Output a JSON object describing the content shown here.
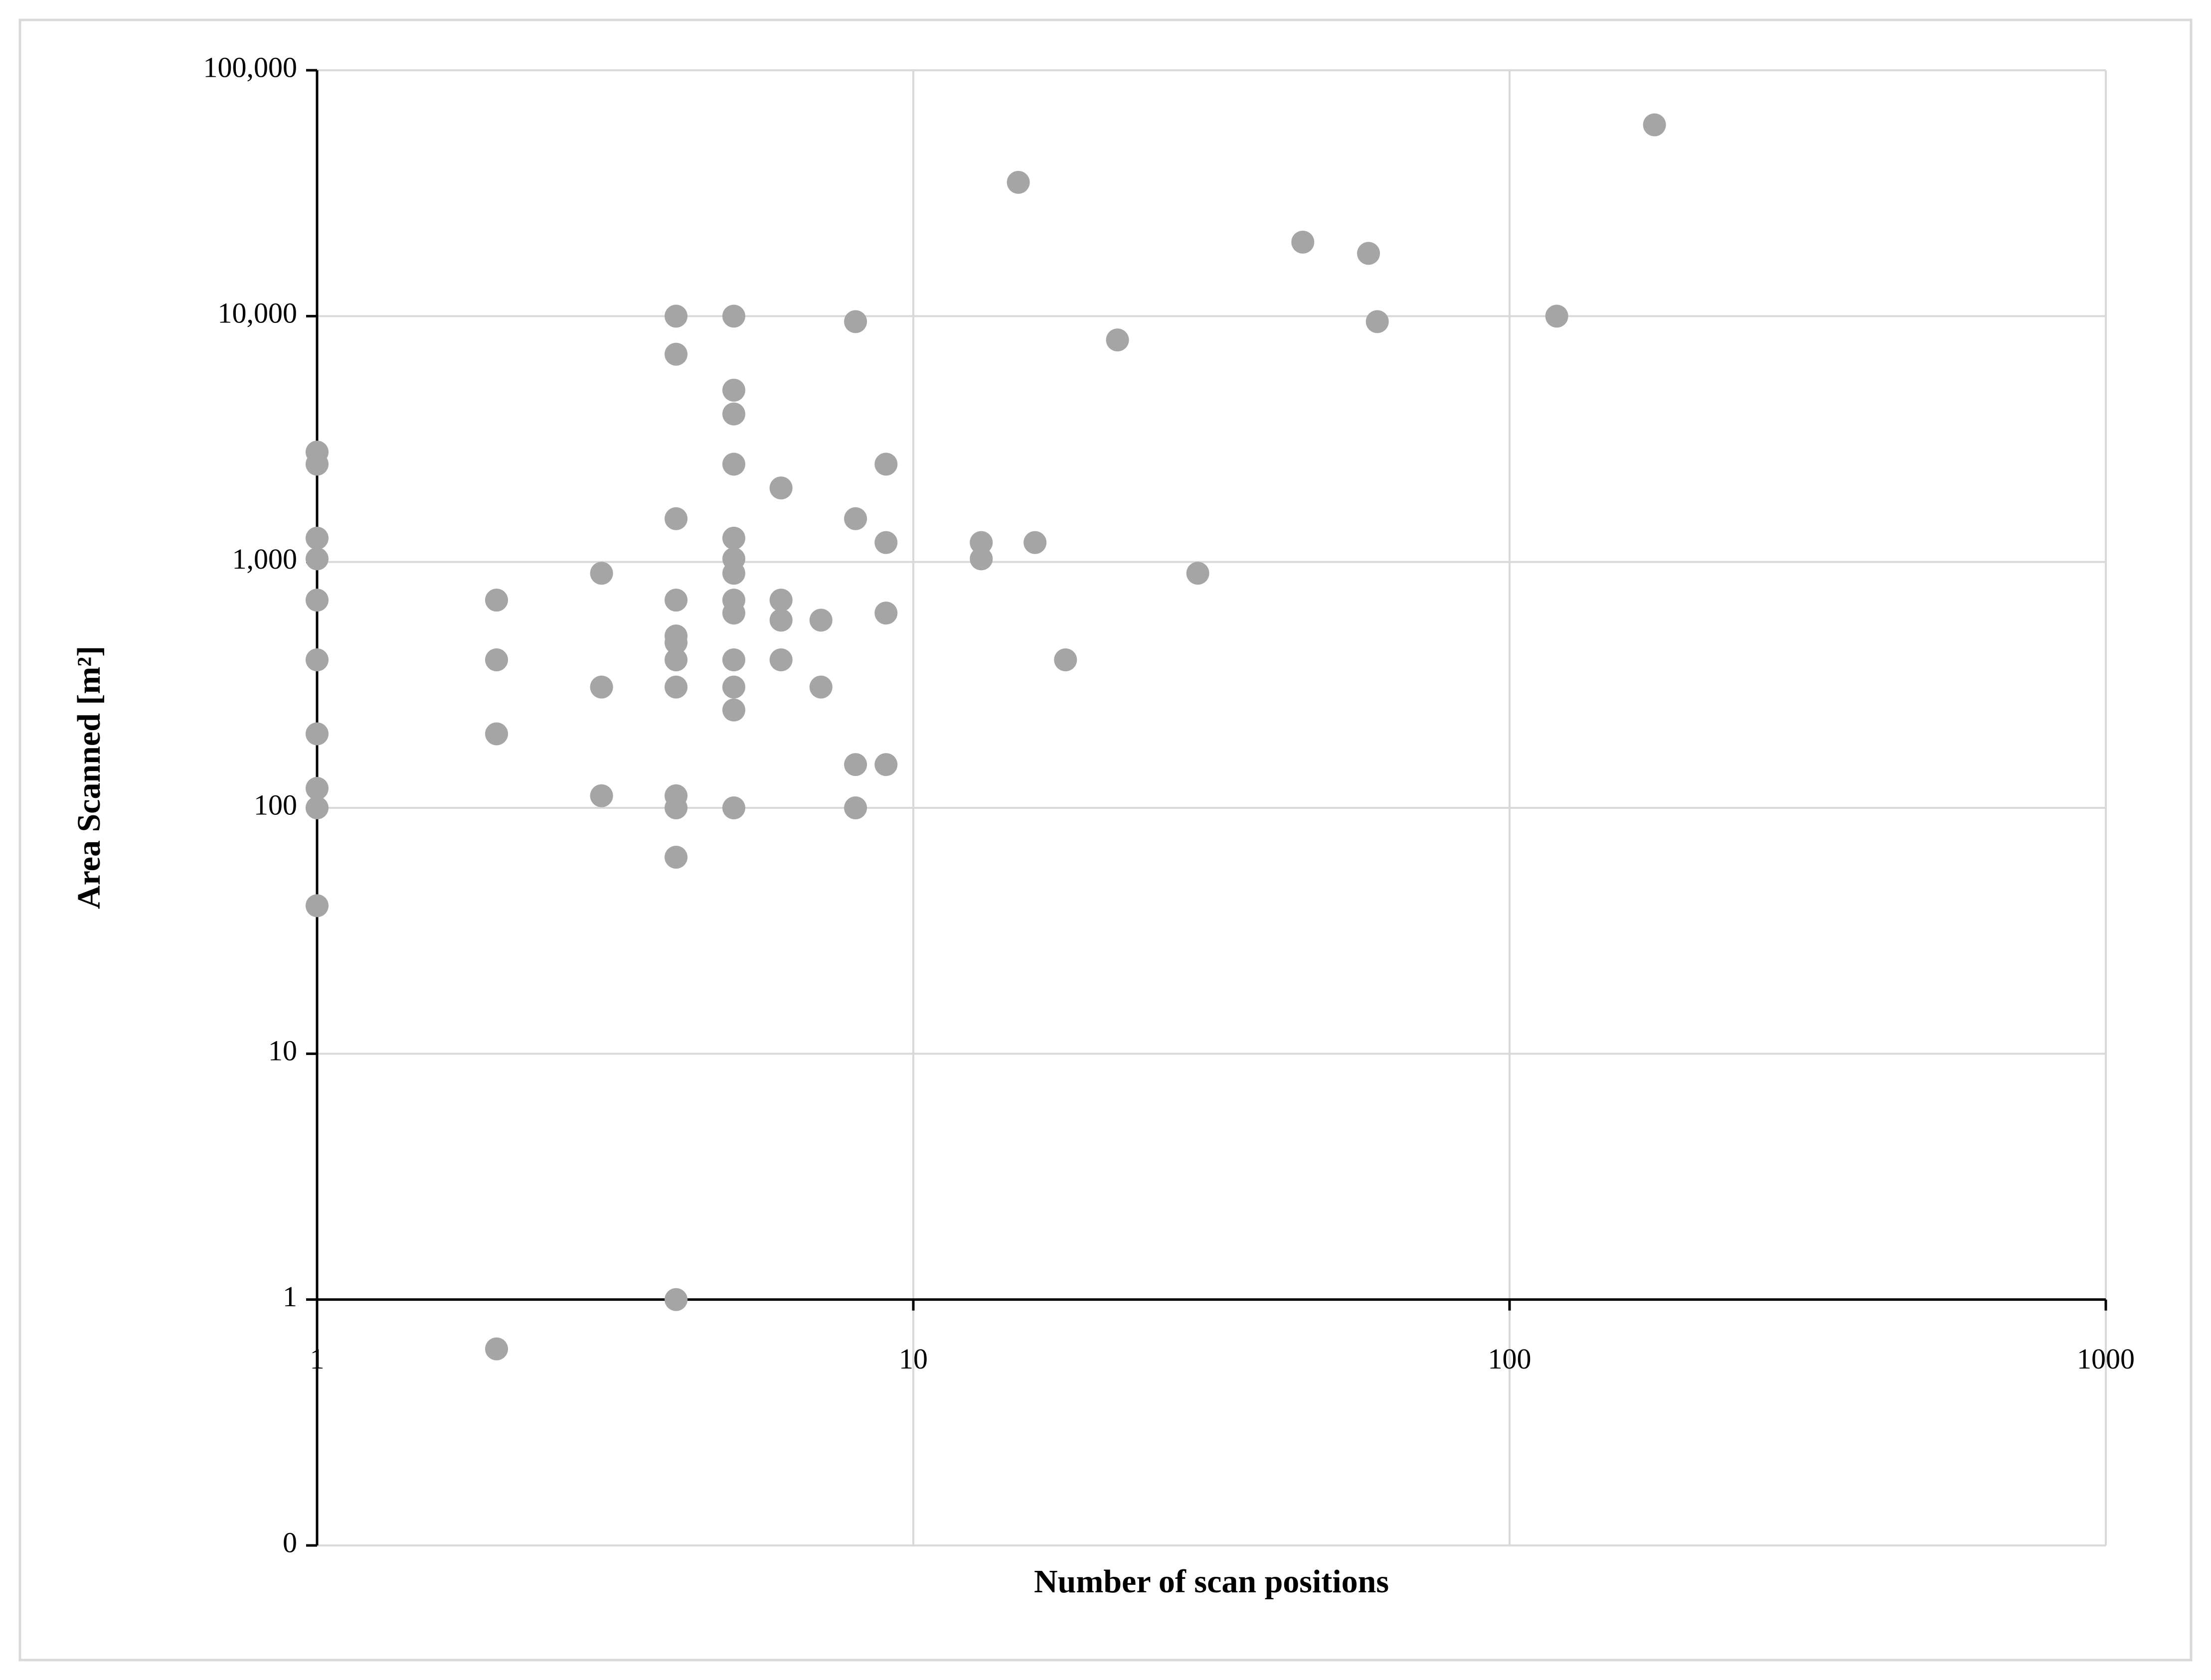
{
  "chart_data": {
    "type": "scatter",
    "xlabel": "Number of scan positions",
    "ylabel": "Area Scanned [m²]",
    "x": [
      1,
      1,
      1,
      1,
      1,
      1,
      1,
      1,
      1,
      1,
      2,
      2,
      2,
      2,
      3,
      3,
      3,
      4,
      4,
      4,
      4,
      4,
      4,
      4,
      4,
      4,
      4,
      4,
      4,
      5,
      5,
      5,
      5,
      5,
      5,
      5,
      5,
      5,
      5,
      5,
      5,
      5,
      6,
      6,
      6,
      6,
      7,
      7,
      8,
      8,
      8,
      8,
      9,
      9,
      9,
      9,
      13,
      13,
      15,
      16,
      18,
      22,
      30,
      45,
      58,
      60,
      120,
      175
    ],
    "values": [
      2800,
      2500,
      1250,
      1030,
      700,
      400,
      200,
      120,
      100,
      40,
      700,
      400,
      200,
      0.63,
      900,
      310,
      112,
      10000,
      7000,
      1500,
      700,
      500,
      470,
      400,
      310,
      112,
      100,
      63,
      1,
      10000,
      5000,
      4000,
      2500,
      1250,
      1030,
      900,
      700,
      620,
      400,
      310,
      250,
      100,
      2000,
      700,
      580,
      400,
      580,
      310,
      9500,
      1500,
      150,
      100,
      2500,
      1200,
      620,
      150,
      1200,
      1030,
      35000,
      1200,
      400,
      8000,
      900,
      20000,
      18000,
      9500,
      10000,
      60000
    ],
    "color": "#a5a5a5",
    "xlog": true,
    "ylog": true,
    "grid": true,
    "x_axis_crosses_y": 1,
    "xlim": [
      1,
      1000
    ],
    "xticks": [
      1,
      10,
      100,
      1000
    ],
    "ylim": [
      0.1,
      100000
    ],
    "yticks": [
      {
        "value": 0.1,
        "label": "0"
      },
      1,
      10,
      100,
      {
        "value": 1000,
        "label": "1,000"
      },
      {
        "value": 10000,
        "label": "10,000"
      },
      {
        "value": 100000,
        "label": "100,000"
      }
    ]
  }
}
